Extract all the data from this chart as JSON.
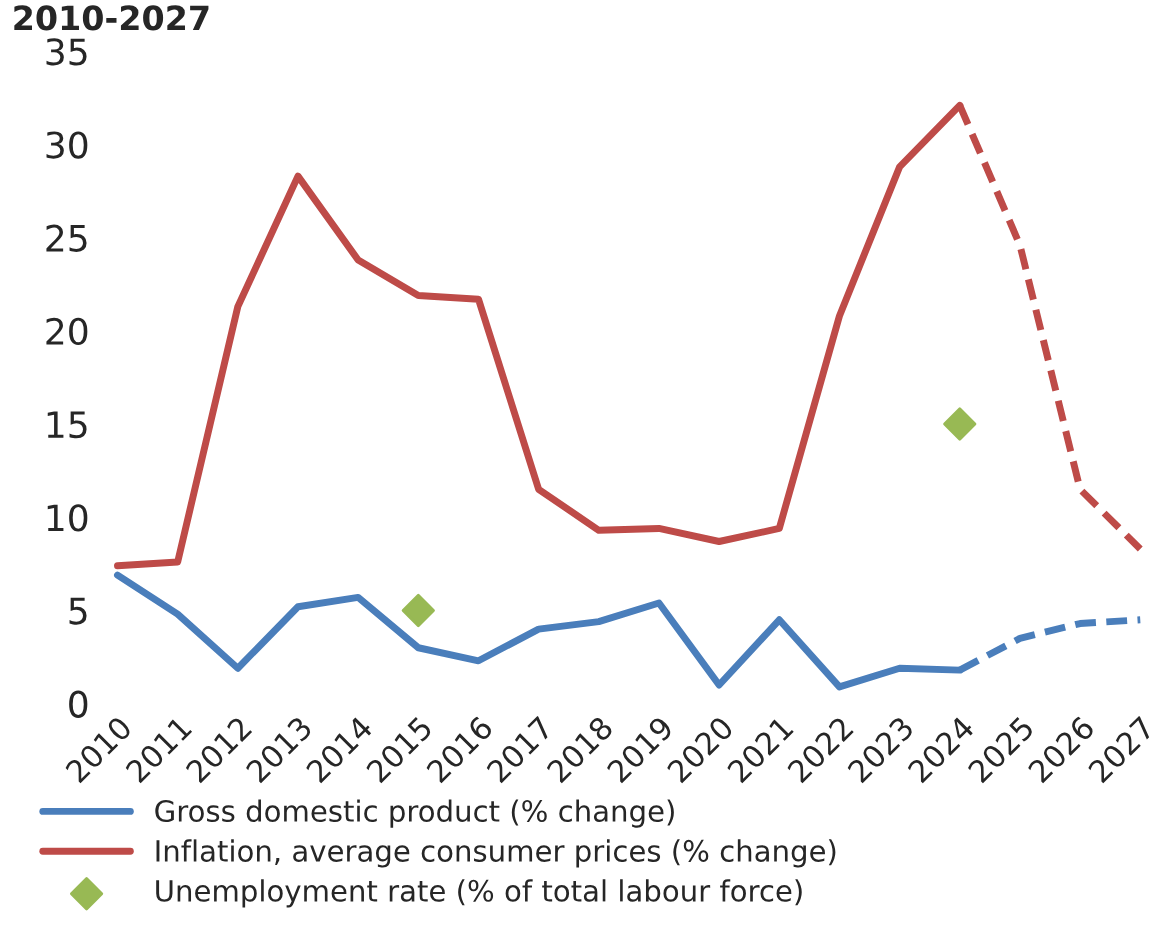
{
  "chart_data": {
    "type": "line",
    "title": "2010-2027",
    "categories": [
      "2010",
      "2011",
      "2012",
      "2013",
      "2014",
      "2015",
      "2016",
      "2017",
      "2018",
      "2019",
      "2020",
      "2021",
      "2022",
      "2023",
      "2024",
      "2025",
      "2026",
      "2027"
    ],
    "series": [
      {
        "name": "Gross domestic product (% change)",
        "color": "#4a7ebb",
        "line_style": "solid",
        "values": [
          6.9,
          4.8,
          1.9,
          5.2,
          5.7,
          3.0,
          2.3,
          4.0,
          4.4,
          5.4,
          1.0,
          4.5,
          0.9,
          1.9,
          1.8,
          null,
          null,
          null
        ]
      },
      {
        "name": "Inflation, average consumer prices (% change)",
        "color": "#be4b48",
        "line_style": "solid",
        "values": [
          7.4,
          7.6,
          21.3,
          28.3,
          23.8,
          21.9,
          21.7,
          11.5,
          9.3,
          9.4,
          8.7,
          9.4,
          20.8,
          28.8,
          32.1,
          null,
          null,
          null
        ]
      },
      {
        "name": "Unemployment rate (% of total labour force)",
        "type": "scatter",
        "color": "#98b954",
        "marker": "diamond",
        "values": [
          null,
          null,
          null,
          null,
          null,
          5.0,
          null,
          null,
          null,
          null,
          null,
          null,
          null,
          null,
          15.0,
          null,
          null,
          null
        ]
      },
      {
        "color": "#4a7ebb",
        "line_style": "dashed",
        "values": [
          null,
          null,
          null,
          null,
          null,
          null,
          null,
          null,
          null,
          null,
          null,
          null,
          null,
          null,
          1.8,
          3.5,
          4.3,
          4.5
        ]
      },
      {
        "color": "#be4b48",
        "line_style": "dashed",
        "values": [
          null,
          null,
          null,
          null,
          null,
          null,
          null,
          null,
          null,
          null,
          null,
          null,
          null,
          null,
          32.1,
          24.6,
          11.5,
          8.3
        ]
      }
    ],
    "ylim": [
      0,
      35
    ],
    "yticks": [
      0,
      5,
      10,
      15,
      20,
      25,
      30,
      35
    ],
    "grid": false,
    "legend": "bottom"
  }
}
